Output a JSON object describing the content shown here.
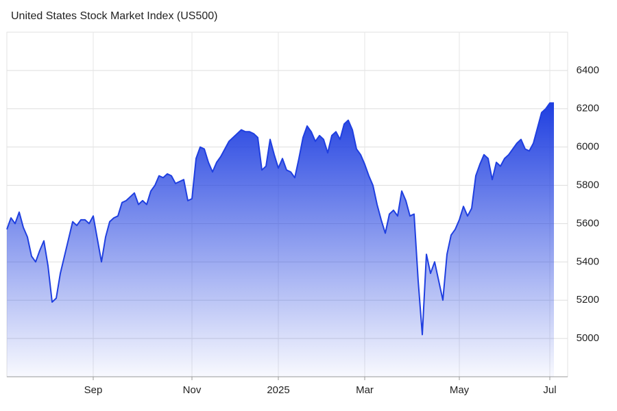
{
  "chart_data": {
    "type": "area",
    "title": "United States Stock Market Index (US500)",
    "categories": [
      null,
      null,
      null,
      null,
      null,
      null,
      null,
      null,
      null,
      null,
      null,
      null,
      null,
      null,
      null,
      null,
      null,
      null,
      null,
      null,
      null,
      "Sep",
      null,
      null,
      null,
      null,
      null,
      null,
      null,
      null,
      null,
      null,
      null,
      null,
      null,
      null,
      null,
      null,
      null,
      null,
      null,
      null,
      null,
      null,
      null,
      "Nov",
      null,
      null,
      null,
      null,
      null,
      null,
      null,
      null,
      null,
      null,
      null,
      null,
      null,
      null,
      null,
      null,
      null,
      null,
      null,
      null,
      "2025",
      null,
      null,
      null,
      null,
      null,
      null,
      null,
      null,
      null,
      null,
      null,
      null,
      null,
      null,
      null,
      null,
      null,
      null,
      null,
      null,
      "Mar",
      null,
      null,
      null,
      null,
      null,
      null,
      null,
      null,
      null,
      null,
      null,
      null,
      null,
      null,
      null,
      null,
      null,
      null,
      null,
      null,
      null,
      null,
      "May",
      null,
      null,
      null,
      null,
      null,
      null,
      null,
      null,
      null,
      null,
      null,
      null,
      null,
      null,
      null,
      null,
      null,
      null,
      null,
      null,
      null,
      "Jul",
      null
    ],
    "values": [
      5570,
      5630,
      5600,
      5660,
      5580,
      5530,
      5430,
      5400,
      5460,
      5510,
      5380,
      5190,
      5210,
      5340,
      5430,
      5520,
      5610,
      5590,
      5620,
      5620,
      5600,
      5640,
      5520,
      5400,
      5530,
      5610,
      5630,
      5640,
      5710,
      5720,
      5740,
      5760,
      5700,
      5720,
      5700,
      5770,
      5800,
      5850,
      5840,
      5860,
      5850,
      5810,
      5820,
      5830,
      5720,
      5730,
      5940,
      6000,
      5990,
      5920,
      5870,
      5920,
      5950,
      5990,
      6030,
      6050,
      6070,
      6090,
      6080,
      6080,
      6070,
      6050,
      5880,
      5900,
      6040,
      5960,
      5890,
      5940,
      5880,
      5870,
      5840,
      5940,
      6050,
      6110,
      6080,
      6030,
      6060,
      6040,
      5970,
      6060,
      6080,
      6040,
      6120,
      6140,
      6090,
      5990,
      5960,
      5910,
      5850,
      5800,
      5700,
      5620,
      5550,
      5650,
      5670,
      5640,
      5770,
      5720,
      5640,
      5650,
      5300,
      5020,
      5440,
      5340,
      5400,
      5300,
      5200,
      5440,
      5540,
      5570,
      5620,
      5690,
      5640,
      5680,
      5850,
      5910,
      5960,
      5940,
      5830,
      5920,
      5900,
      5940,
      5960,
      5990,
      6020,
      6040,
      5990,
      5980,
      6020,
      6100,
      6180,
      6200,
      6230,
      6230
    ],
    "color": "#1f3fe0",
    "ylim": [
      4800,
      6600
    ],
    "yticks": [
      5000,
      5200,
      5400,
      5600,
      5800,
      6000,
      6200,
      6400
    ],
    "grid": true
  }
}
